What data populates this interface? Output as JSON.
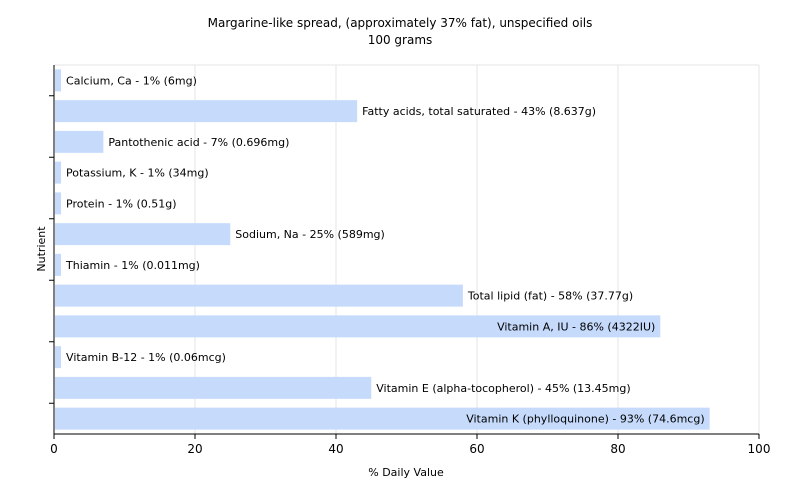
{
  "chart_data": {
    "type": "bar",
    "orientation": "horizontal",
    "title": "Margarine-like spread, (approximately 37% fat), unspecified oils",
    "subtitle": "100 grams",
    "xlabel": "% Daily Value",
    "ylabel": "Nutrient",
    "xlim": [
      0,
      100
    ],
    "xticks": [
      0,
      20,
      40,
      60,
      80,
      100
    ],
    "grid": true,
    "bar_color": "#c6dbfc",
    "bars": [
      {
        "label": "Calcium, Ca - 1% (6mg)",
        "value": 1
      },
      {
        "label": "Fatty acids, total saturated - 43% (8.637g)",
        "value": 43
      },
      {
        "label": "Pantothenic acid - 7% (0.696mg)",
        "value": 7
      },
      {
        "label": "Potassium, K - 1% (34mg)",
        "value": 1
      },
      {
        "label": "Protein - 1% (0.51g)",
        "value": 1
      },
      {
        "label": "Sodium, Na - 25% (589mg)",
        "value": 25
      },
      {
        "label": "Thiamin - 1% (0.011mg)",
        "value": 1
      },
      {
        "label": "Total lipid (fat) - 58% (37.77g)",
        "value": 58
      },
      {
        "label": "Vitamin A, IU - 86% (4322IU)",
        "value": 86
      },
      {
        "label": "Vitamin B-12 - 1% (0.06mcg)",
        "value": 1
      },
      {
        "label": "Vitamin E (alpha-tocopherol) - 45% (13.45mg)",
        "value": 45
      },
      {
        "label": "Vitamin K (phylloquinone) - 93% (74.6mcg)",
        "value": 93
      }
    ]
  }
}
